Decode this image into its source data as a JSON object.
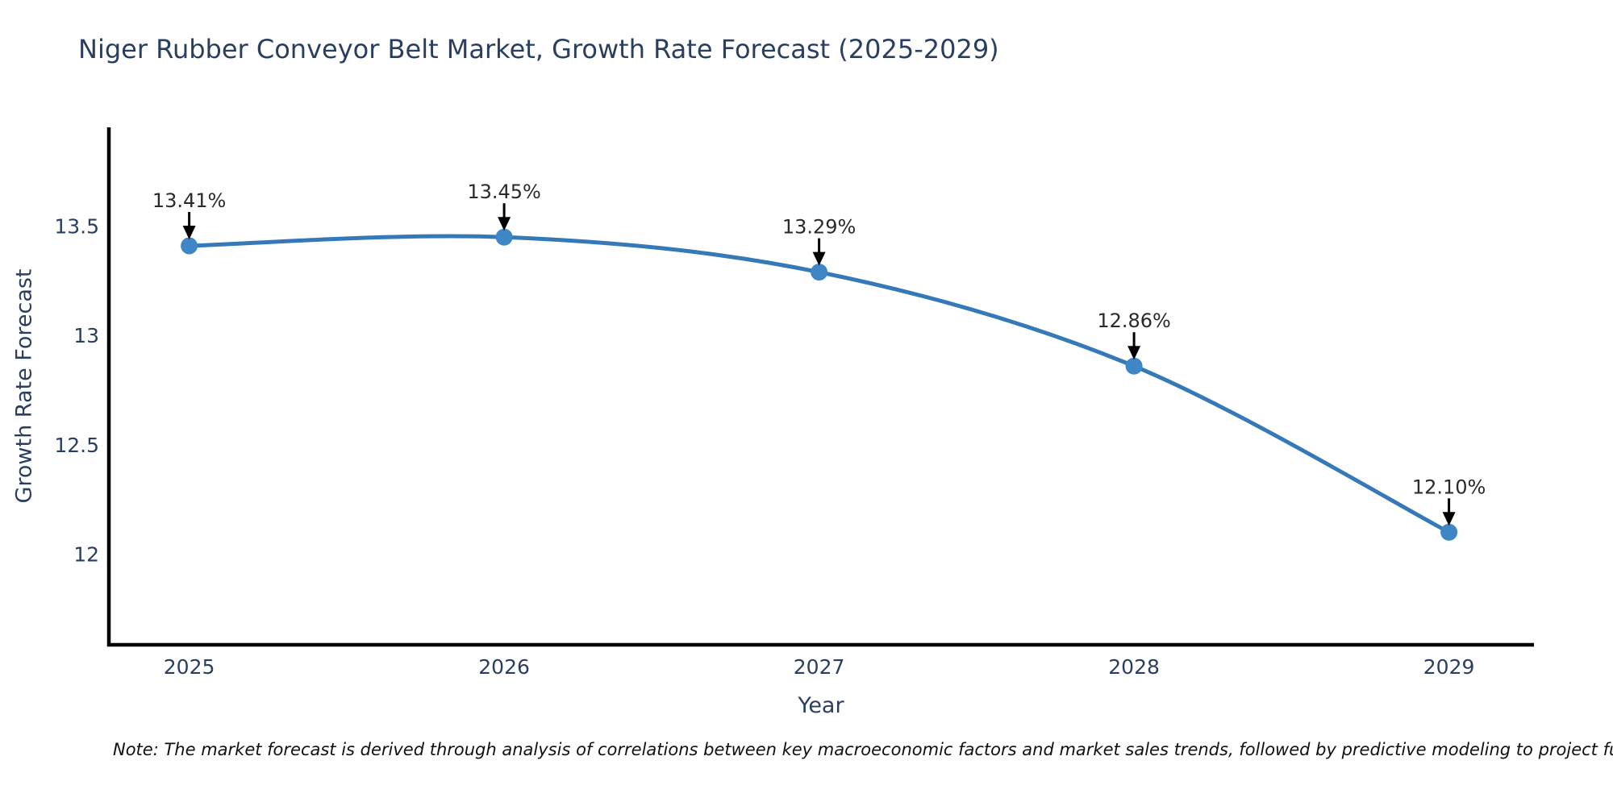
{
  "chart_data": {
    "type": "line",
    "title": "Niger Rubber Conveyor Belt Market, Growth Rate Forecast (2025-2029)",
    "xlabel": "Year",
    "ylabel": "Growth Rate Forecast",
    "x": [
      2025,
      2026,
      2027,
      2028,
      2029
    ],
    "y": [
      13.41,
      13.45,
      13.29,
      12.86,
      12.1
    ],
    "point_labels": [
      "13.41%",
      "13.45%",
      "13.29%",
      "12.86%",
      "12.10%"
    ],
    "x_tick_labels": [
      "2025",
      "2026",
      "2027",
      "2028",
      "2029"
    ],
    "y_ticks": [
      13.5,
      13,
      12.5,
      12
    ],
    "y_tick_labels": [
      "13.5",
      "13",
      "12.5",
      "12"
    ],
    "xlim": [
      2024.745,
      2029.27
    ],
    "ylim": [
      11.585,
      13.952
    ],
    "line_shape": "spline",
    "grid": false,
    "legend": "none",
    "colors": {
      "line": "#3579b8",
      "marker": "#3e86c6",
      "arrow": "#000000",
      "axis": "#000000",
      "title_text": "#2a3f5f",
      "tick_text": "#2a3f5f",
      "annotation_text": "#2a2a2a",
      "background": "#ffffff"
    }
  },
  "note": {
    "text": "Note: The market forecast is derived through analysis of correlations between key macroeconomic factors and market sales trends, followed by predictive modeling to project future sales."
  }
}
